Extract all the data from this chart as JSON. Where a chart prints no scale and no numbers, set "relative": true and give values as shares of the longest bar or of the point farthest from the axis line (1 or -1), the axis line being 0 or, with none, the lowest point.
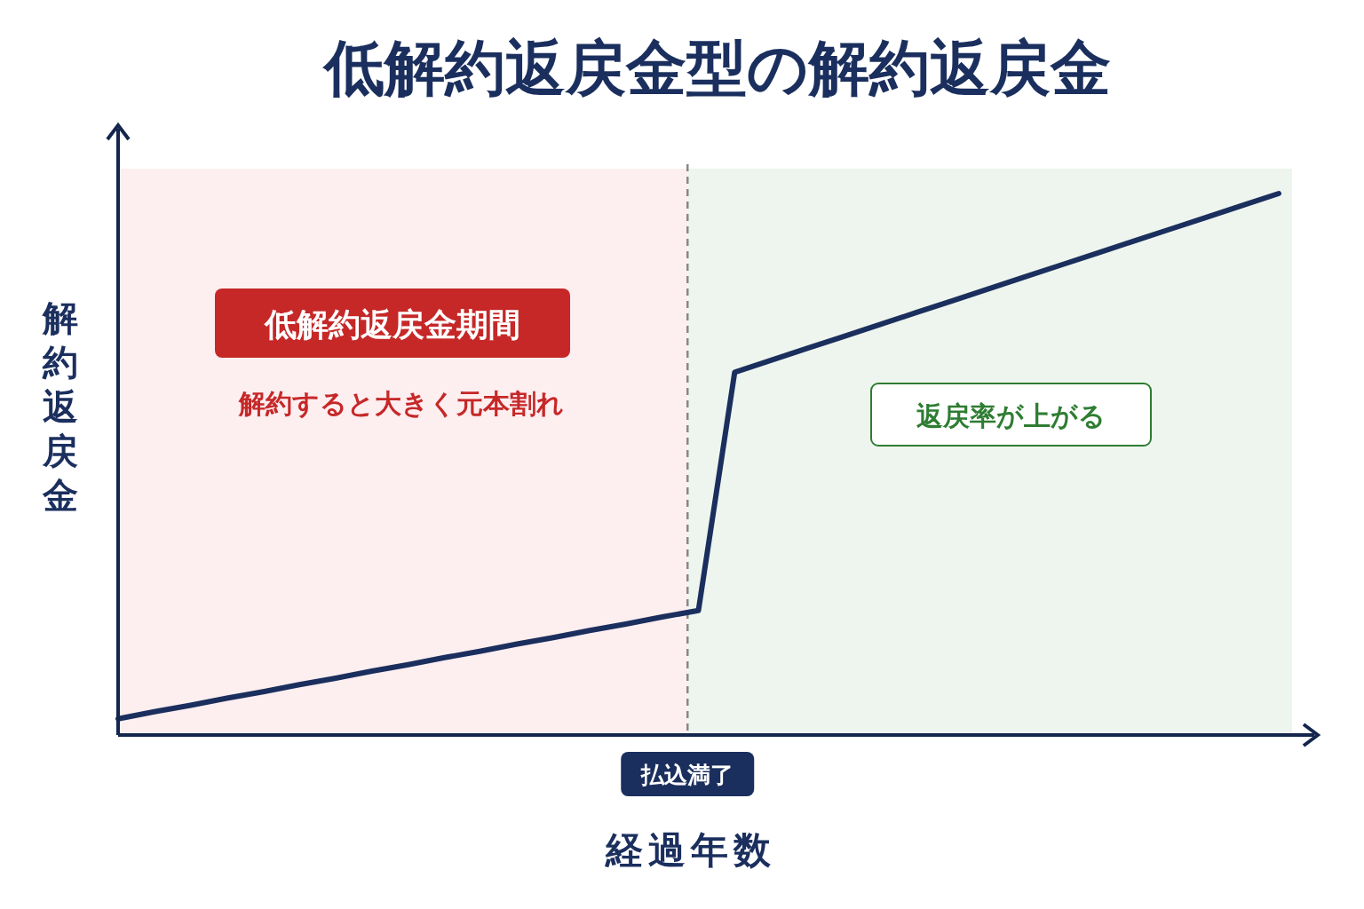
{
  "chart_data": {
    "type": "line",
    "title": "低解約返戻金型の解約返戻金",
    "xlabel": "経過年数",
    "ylabel": "解約返戻金",
    "relative": true,
    "marker": "none",
    "line_style": "solid",
    "categories": [
      null,
      null,
      null,
      null,
      null,
      null,
      null,
      null,
      null,
      null,
      null,
      null,
      null,
      null,
      null,
      null,
      null,
      null,
      null,
      null,
      null,
      null,
      null,
      null,
      null,
      null,
      null,
      null,
      null,
      null,
      null,
      null,
      null
    ],
    "series": [
      {
        "color": "#1b2f5e",
        "values": [
          0.03,
          0.043,
          0.055,
          0.068,
          0.08,
          0.093,
          0.105,
          0.118,
          0.13,
          0.143,
          0.155,
          0.168,
          0.18,
          0.193,
          0.205,
          0.218,
          0.23,
          0.67,
          0.692,
          0.714,
          0.736,
          0.758,
          0.78,
          0.802,
          0.824,
          0.846,
          0.868,
          0.89,
          0.912,
          0.934,
          0.956,
          0.978,
          1
        ]
      }
    ],
    "annotations": [
      "低解約返戻金期間",
      "解約すると大きく元本割れ",
      "返戻率が上がる",
      "払込満了"
    ]
  }
}
